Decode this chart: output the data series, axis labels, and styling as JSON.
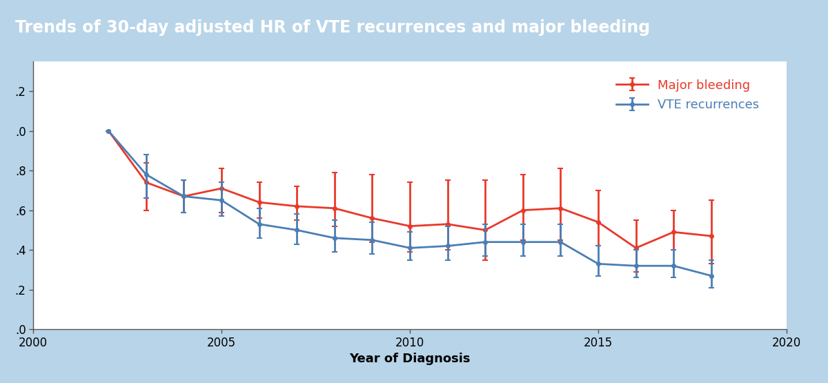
{
  "title": "Trends of 30-day adjusted HR of VTE recurrences and major bleeding",
  "title_bg_color": "#5aa8cc",
  "title_text_color": "white",
  "plot_bg_color": "#ffffff",
  "outer_bg_color": "#b8d4e8",
  "xlabel": "Year of Diagnosis",
  "xlim": [
    2000,
    2020
  ],
  "ylim": [
    0.0,
    1.35
  ],
  "yticks": [
    0.0,
    0.2,
    0.4,
    0.6,
    0.8,
    1.0,
    1.2
  ],
  "ytick_labels": [
    ".0",
    ".2",
    ".4",
    ".6",
    ".8",
    ".0",
    ".2"
  ],
  "xticks": [
    2000,
    2005,
    2010,
    2015,
    2020
  ],
  "red_label": "Major bleeding",
  "blue_label": "VTE recurrences",
  "red_color": "#e8392a",
  "blue_color": "#4a7eb5",
  "red_x": [
    2002,
    2003,
    2004,
    2005,
    2006,
    2007,
    2008,
    2009,
    2010,
    2011,
    2012,
    2013,
    2014,
    2015,
    2016,
    2017,
    2018
  ],
  "red_y": [
    1.0,
    0.74,
    0.67,
    0.71,
    0.64,
    0.62,
    0.61,
    0.56,
    0.52,
    0.53,
    0.5,
    0.6,
    0.61,
    0.54,
    0.41,
    0.49,
    0.47
  ],
  "red_yerr_lo": [
    0.0,
    0.14,
    0.08,
    0.12,
    0.08,
    0.07,
    0.09,
    0.12,
    0.13,
    0.13,
    0.15,
    0.15,
    0.16,
    0.12,
    0.12,
    0.09,
    0.14
  ],
  "red_yerr_hi": [
    0.0,
    0.1,
    0.08,
    0.1,
    0.1,
    0.1,
    0.18,
    0.22,
    0.22,
    0.22,
    0.25,
    0.18,
    0.2,
    0.16,
    0.14,
    0.11,
    0.18
  ],
  "blue_x": [
    2002,
    2003,
    2004,
    2005,
    2006,
    2007,
    2008,
    2009,
    2010,
    2011,
    2012,
    2013,
    2014,
    2015,
    2016,
    2017,
    2018
  ],
  "blue_y": [
    1.0,
    0.78,
    0.67,
    0.65,
    0.53,
    0.5,
    0.46,
    0.45,
    0.41,
    0.42,
    0.44,
    0.44,
    0.44,
    0.33,
    0.32,
    0.32,
    0.27
  ],
  "blue_yerr_lo": [
    0.0,
    0.12,
    0.08,
    0.08,
    0.07,
    0.07,
    0.07,
    0.07,
    0.06,
    0.07,
    0.07,
    0.07,
    0.07,
    0.06,
    0.06,
    0.06,
    0.06
  ],
  "blue_yerr_hi": [
    0.0,
    0.1,
    0.08,
    0.09,
    0.08,
    0.08,
    0.09,
    0.09,
    0.08,
    0.1,
    0.09,
    0.09,
    0.09,
    0.09,
    0.08,
    0.08,
    0.08
  ],
  "title_fontsize": 17,
  "tick_fontsize": 12,
  "legend_fontsize": 13,
  "xlabel_fontsize": 13
}
